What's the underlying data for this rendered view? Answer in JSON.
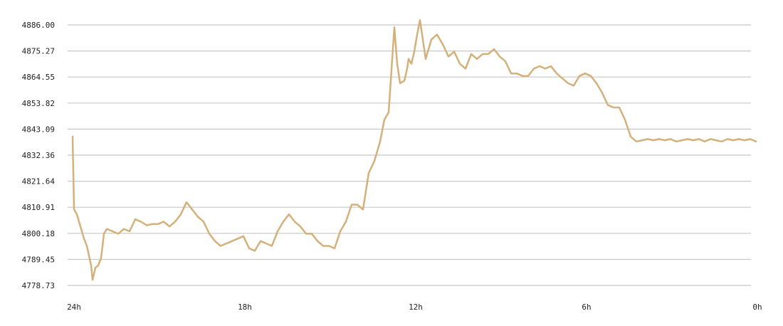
{
  "chart_data": {
    "type": "line",
    "title": "",
    "xlabel": "",
    "ylabel": "",
    "x_unit": "hours ago",
    "xlim": [
      24,
      0
    ],
    "ylim": [
      4778.73,
      4886.0
    ],
    "y_ticks": [
      4886.0,
      4875.27,
      4864.55,
      4853.82,
      4843.09,
      4832.36,
      4821.64,
      4810.91,
      4800.18,
      4789.45,
      4778.73
    ],
    "y_tick_labels": [
      "4886.00",
      "4875.27",
      "4864.55",
      "4853.82",
      "4843.09",
      "4832.36",
      "4821.64",
      "4810.91",
      "4800.18",
      "4789.45",
      "4778.73"
    ],
    "x_ticks": [
      24,
      18,
      12,
      6,
      0
    ],
    "x_tick_labels": [
      "24h",
      "18h",
      "12h",
      "6h",
      "0h"
    ],
    "grid": "horizontal",
    "legend": "none",
    "colors": {
      "line": "#d4b07a",
      "grid": "#c8c8c8",
      "text": "#222222"
    },
    "series": [
      {
        "x": [
          24.0,
          23.95,
          23.85,
          23.7,
          23.6,
          23.5,
          23.35,
          23.3,
          23.2,
          23.1,
          23.0,
          22.9,
          22.8,
          22.6,
          22.4,
          22.2,
          22.0,
          21.8,
          21.6,
          21.4,
          21.2,
          21.0,
          20.8,
          20.6,
          20.4,
          20.2,
          20.0,
          19.8,
          19.6,
          19.4,
          19.2,
          19.0,
          18.8,
          18.6,
          18.4,
          18.2,
          18.0,
          17.8,
          17.6,
          17.4,
          17.2,
          17.0,
          16.8,
          16.6,
          16.4,
          16.2,
          16.0,
          15.8,
          15.6,
          15.4,
          15.2,
          15.0,
          14.8,
          14.6,
          14.4,
          14.2,
          14.0,
          13.8,
          13.6,
          13.4,
          13.2,
          13.05,
          12.9,
          12.7,
          12.6,
          12.5,
          12.35,
          12.25,
          12.2,
          12.1,
          12.0,
          11.9,
          11.8,
          11.6,
          11.4,
          11.2,
          11.0,
          10.8,
          10.6,
          10.4,
          10.2,
          10.0,
          9.8,
          9.6,
          9.4,
          9.2,
          9.0,
          8.8,
          8.6,
          8.4,
          8.2,
          8.0,
          7.8,
          7.6,
          7.4,
          7.2,
          7.0,
          6.8,
          6.6,
          6.4,
          6.2,
          6.0,
          5.8,
          5.6,
          5.4,
          5.2,
          5.0,
          4.8,
          4.6,
          4.4,
          4.2,
          4.0,
          3.8,
          3.6,
          3.4,
          3.2,
          3.0,
          2.8,
          2.6,
          2.4,
          2.2,
          2.0,
          1.8,
          1.6,
          1.4,
          1.2,
          1.0,
          0.8,
          0.6,
          0.4,
          0.2,
          0.0
        ],
        "y": [
          4840.0,
          4810.0,
          4808.0,
          4802.0,
          4798.0,
          4795.0,
          4787.0,
          4781.0,
          4786.0,
          4787.0,
          4790.0,
          4800.0,
          4802.0,
          4801.0,
          4800.0,
          4802.0,
          4801.0,
          4806.0,
          4805.0,
          4803.5,
          4804.0,
          4804.0,
          4805.0,
          4803.0,
          4805.0,
          4808.0,
          4813.0,
          4810.0,
          4807.0,
          4805.0,
          4800.0,
          4797.0,
          4795.0,
          4796.0,
          4797.0,
          4798.0,
          4799.0,
          4794.0,
          4793.0,
          4797.0,
          4796.0,
          4795.0,
          4801.0,
          4805.0,
          4808.0,
          4805.0,
          4803.0,
          4800.0,
          4800.0,
          4797.0,
          4795.0,
          4795.0,
          4794.0,
          4801.0,
          4805.0,
          4812.0,
          4812.0,
          4810.0,
          4825.0,
          4830.0,
          4838.0,
          4847.0,
          4850.0,
          4885.0,
          4870.0,
          4862.0,
          4863.0,
          4868.0,
          4872.0,
          4870.0,
          4875.0,
          4882.0,
          4888.0,
          4872.0,
          4880.0,
          4882.0,
          4878.0,
          4873.0,
          4875.0,
          4870.0,
          4868.0,
          4874.0,
          4872.0,
          4874.0,
          4874.0,
          4876.0,
          4873.0,
          4871.0,
          4866.0,
          4866.0,
          4865.0,
          4865.0,
          4868.0,
          4869.0,
          4868.0,
          4869.0,
          4866.0,
          4864.0,
          4862.0,
          4861.0,
          4865.0,
          4866.0,
          4865.0,
          4862.0,
          4858.0,
          4853.0,
          4852.0,
          4852.0,
          4847.0,
          4840.0,
          4838.0,
          4838.5,
          4839.0,
          4838.5,
          4839.0,
          4838.5,
          4839.0,
          4838.0,
          4838.5,
          4839.0,
          4838.5,
          4839.0,
          4838.0,
          4839.0,
          4838.5,
          4838.0,
          4839.0,
          4838.5,
          4839.0,
          4838.5,
          4839.0,
          4838.0
        ]
      }
    ]
  }
}
